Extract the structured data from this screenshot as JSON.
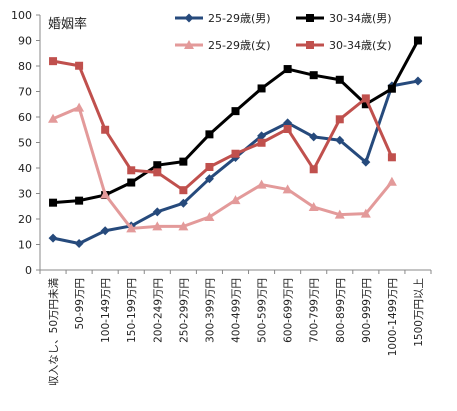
{
  "chart_data": {
    "type": "line",
    "ylabel": "婚姻率",
    "ylim": [
      0,
      100
    ],
    "yticks": [
      0,
      10,
      20,
      30,
      40,
      50,
      60,
      70,
      80,
      90,
      100
    ],
    "grid": false,
    "legend_position": "top-right",
    "categories": [
      "収入なし、50万円未満",
      "50-99万円",
      "100-149万円",
      "150-199万円",
      "200-249万円",
      "250-299万円",
      "300-399万円",
      "400-499万円",
      "500-599万円",
      "600-699万円",
      "700-799万円",
      "800-899万円",
      "900-999万円",
      "1000-1499万円",
      "1500万円以上"
    ],
    "series": [
      {
        "name": "25-29歳(男)",
        "color": "#264a7c",
        "marker": "diamond",
        "values": [
          12.5,
          10.4,
          15.4,
          17.3,
          22.8,
          26.2,
          35.8,
          44.1,
          52.6,
          57.7,
          52.2,
          50.9,
          42.3,
          72.2,
          74.1
        ]
      },
      {
        "name": "30-34歳(男)",
        "color": "#000000",
        "marker": "square",
        "values": [
          26.4,
          27.2,
          29.4,
          34.3,
          41.1,
          42.5,
          53.2,
          62.3,
          71.2,
          78.8,
          76.4,
          74.6,
          65.0,
          71.1,
          90.0
        ]
      },
      {
        "name": "25-29歳(女)",
        "color": "#e39a9a",
        "marker": "triangle",
        "values": [
          59.3,
          63.7,
          29.6,
          16.3,
          17.1,
          17.1,
          20.8,
          27.4,
          33.5,
          31.6,
          24.7,
          21.7,
          22.1,
          34.6,
          null
        ]
      },
      {
        "name": "30-34歳(女)",
        "color": "#c0504d",
        "marker": "square",
        "values": [
          81.9,
          80.1,
          55.0,
          39.1,
          38.3,
          31.3,
          40.4,
          45.6,
          49.9,
          55.3,
          39.5,
          59.1,
          67.3,
          44.2,
          null
        ]
      }
    ]
  }
}
